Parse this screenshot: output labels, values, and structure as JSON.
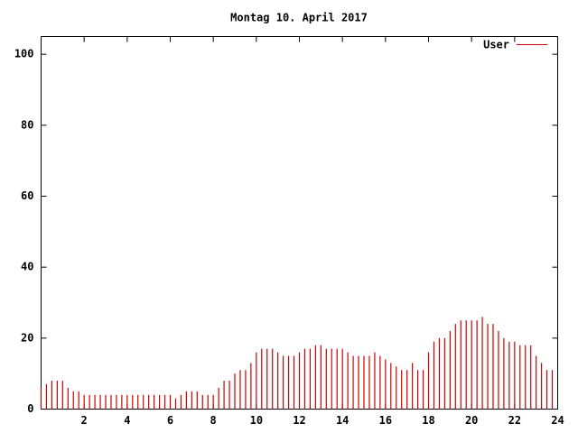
{
  "chart_data": {
    "type": "impulses",
    "title": "Montag 10. April 2017",
    "x": [
      0,
      0.25,
      0.5,
      0.75,
      1,
      1.25,
      1.5,
      1.75,
      2,
      2.25,
      2.5,
      2.75,
      3,
      3.25,
      3.5,
      3.75,
      4,
      4.25,
      4.5,
      4.75,
      5,
      5.25,
      5.5,
      5.75,
      6,
      6.25,
      6.5,
      6.75,
      7,
      7.25,
      7.5,
      7.75,
      8,
      8.25,
      8.5,
      8.75,
      9,
      9.25,
      9.5,
      9.75,
      10,
      10.25,
      10.5,
      10.75,
      11,
      11.25,
      11.5,
      11.75,
      12,
      12.25,
      12.5,
      12.75,
      13,
      13.25,
      13.5,
      13.75,
      14,
      14.25,
      14.5,
      14.75,
      15,
      15.25,
      15.5,
      15.75,
      16,
      16.25,
      16.5,
      16.75,
      17,
      17.25,
      17.5,
      17.75,
      18,
      18.25,
      18.5,
      18.75,
      19,
      19.25,
      19.5,
      19.75,
      20,
      20.25,
      20.5,
      20.75,
      21,
      21.25,
      21.5,
      21.75,
      22,
      22.25,
      22.5,
      22.75,
      23,
      23.25,
      23.5,
      23.75
    ],
    "series": [
      {
        "name": "User",
        "color": "#cc0000",
        "values": [
          6,
          7,
          8,
          8,
          8,
          6,
          5,
          5,
          4,
          4,
          4,
          4,
          4,
          4,
          4,
          4,
          4,
          4,
          4,
          4,
          4,
          4,
          4,
          4,
          4,
          3,
          4,
          5,
          5,
          5,
          4,
          4,
          4,
          6,
          8,
          8,
          10,
          11,
          11,
          13,
          16,
          17,
          17,
          17,
          16,
          15,
          15,
          15,
          16,
          17,
          17,
          18,
          18,
          17,
          17,
          17,
          17,
          16,
          15,
          15,
          15,
          15,
          16,
          15,
          14,
          13,
          12,
          11,
          11,
          13,
          11,
          11,
          16,
          19,
          20,
          20,
          22,
          24,
          25,
          25,
          25,
          25,
          26,
          24,
          24,
          22,
          20,
          19,
          19,
          18,
          18,
          18,
          15,
          13,
          11,
          11
        ]
      }
    ],
    "xlim": [
      0,
      24
    ],
    "xticks": [
      2,
      4,
      6,
      8,
      10,
      12,
      14,
      16,
      18,
      20,
      22,
      24
    ],
    "ylim": [
      0,
      105
    ],
    "yticks": [
      0,
      20,
      40,
      60,
      80,
      100
    ]
  }
}
